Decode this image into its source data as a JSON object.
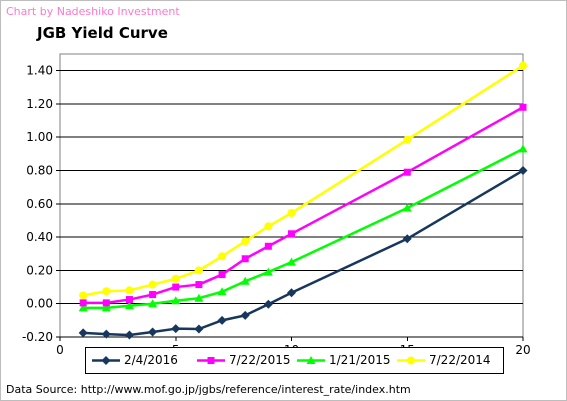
{
  "credit": "Chart by Nadeshiko Investment",
  "source": "Data Source: http://www.mof.go.jp/jgbs/reference/interest_rate/index.htm",
  "chart_data": {
    "type": "line",
    "title": "JGB Yield Curve",
    "xlabel": "",
    "ylabel": "",
    "xlim": [
      0,
      20
    ],
    "ylim": [
      -0.2,
      1.5
    ],
    "x_ticks": [
      0,
      5,
      10,
      15,
      20
    ],
    "y_ticks": [
      -0.2,
      0.0,
      0.2,
      0.4,
      0.6,
      0.8,
      1.0,
      1.2,
      1.4
    ],
    "y_tick_labels": [
      "-0.20",
      "0.00",
      "0.20",
      "0.40",
      "0.60",
      "0.80",
      "1.00",
      "1.20",
      "1.40"
    ],
    "grid": "horizontal",
    "legend_position": "bottom",
    "x": [
      1,
      2,
      3,
      4,
      5,
      6,
      7,
      8,
      9,
      10,
      15,
      20
    ],
    "series": [
      {
        "name": "2/4/2016",
        "color": "#17375e",
        "marker": "diamond",
        "values": [
          -0.175,
          -0.183,
          -0.188,
          -0.17,
          -0.15,
          -0.152,
          -0.1,
          -0.07,
          -0.003,
          0.066,
          0.39,
          0.8
        ]
      },
      {
        "name": "7/22/2015",
        "color": "#ff00ff",
        "marker": "square",
        "values": [
          0.005,
          0.005,
          0.025,
          0.055,
          0.1,
          0.115,
          0.175,
          0.27,
          0.345,
          0.42,
          0.79,
          1.18
        ]
      },
      {
        "name": "1/21/2015",
        "color": "#00ff00",
        "marker": "triangle",
        "values": [
          -0.025,
          -0.025,
          -0.012,
          0.0,
          0.018,
          0.033,
          0.072,
          0.135,
          0.19,
          0.25,
          0.575,
          0.93
        ]
      },
      {
        "name": "7/22/2014",
        "color": "#ffff00",
        "marker": "circle",
        "values": [
          0.05,
          0.075,
          0.08,
          0.115,
          0.15,
          0.2,
          0.285,
          0.375,
          0.465,
          0.545,
          0.985,
          1.43
        ]
      }
    ]
  }
}
